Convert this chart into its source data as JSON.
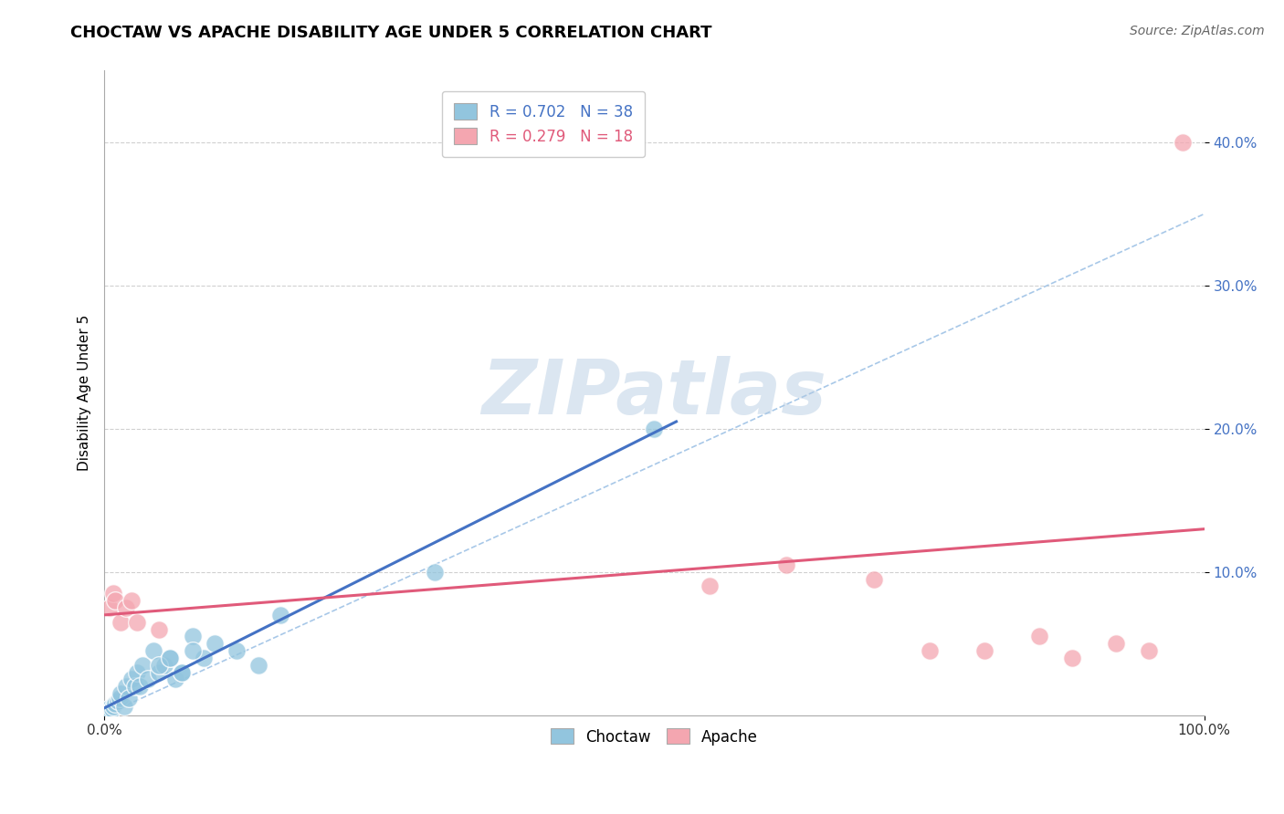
{
  "title": "CHOCTAW VS APACHE DISABILITY AGE UNDER 5 CORRELATION CHART",
  "source": "Source: ZipAtlas.com",
  "ylabel": "Disability Age Under 5",
  "legend_label1": "Choctaw",
  "legend_label2": "Apache",
  "r_choctaw": 0.702,
  "n_choctaw": 38,
  "r_apache": 0.279,
  "n_apache": 18,
  "watermark": "ZIPatlas",
  "choctaw_color": "#92c5de",
  "apache_color": "#f4a6b0",
  "choctaw_line_color": "#4472c4",
  "apache_line_color": "#e05a7a",
  "ref_line_color": "#a8c8e8",
  "grid_color": "#d0d0d0",
  "choctaw_x": [
    0.2,
    0.3,
    0.4,
    0.5,
    0.6,
    0.7,
    0.8,
    1.0,
    1.2,
    1.4,
    1.5,
    1.8,
    2.0,
    2.2,
    2.5,
    2.8,
    3.0,
    3.2,
    3.5,
    4.0,
    4.5,
    5.0,
    5.5,
    6.0,
    6.5,
    7.0,
    8.0,
    9.0,
    10.0,
    12.0,
    14.0,
    16.0,
    30.0,
    50.0,
    5.0,
    6.0,
    7.0,
    8.0
  ],
  "choctaw_y": [
    0.2,
    0.3,
    0.4,
    0.5,
    0.3,
    0.4,
    0.6,
    0.8,
    1.0,
    1.2,
    1.5,
    0.6,
    2.0,
    1.2,
    2.5,
    2.0,
    3.0,
    2.0,
    3.5,
    2.5,
    4.5,
    3.0,
    3.5,
    4.0,
    2.5,
    3.0,
    5.5,
    4.0,
    5.0,
    4.5,
    3.5,
    7.0,
    10.0,
    20.0,
    3.5,
    4.0,
    3.0,
    4.5
  ],
  "apache_x": [
    0.5,
    0.8,
    1.0,
    1.5,
    2.0,
    2.5,
    3.0,
    5.0,
    55.0,
    62.0,
    70.0,
    75.0,
    80.0,
    85.0,
    88.0,
    92.0,
    95.0,
    98.0
  ],
  "apache_y": [
    7.5,
    8.5,
    8.0,
    6.5,
    7.5,
    8.0,
    6.5,
    6.0,
    9.0,
    10.5,
    9.5,
    4.5,
    4.5,
    5.5,
    4.0,
    5.0,
    4.5,
    40.0
  ],
  "xlim": [
    0,
    100
  ],
  "ylim": [
    0,
    45
  ],
  "ytick_vals": [
    10,
    20,
    30,
    40
  ],
  "ytick_labels": [
    "10.0%",
    "20.0%",
    "30.0%",
    "40.0%"
  ],
  "xtick_vals": [
    0,
    100
  ],
  "xtick_labels": [
    "0.0%",
    "100.0%"
  ],
  "background_color": "#ffffff",
  "title_fontsize": 13,
  "axis_label_fontsize": 11,
  "tick_fontsize": 11,
  "legend_fontsize": 12
}
